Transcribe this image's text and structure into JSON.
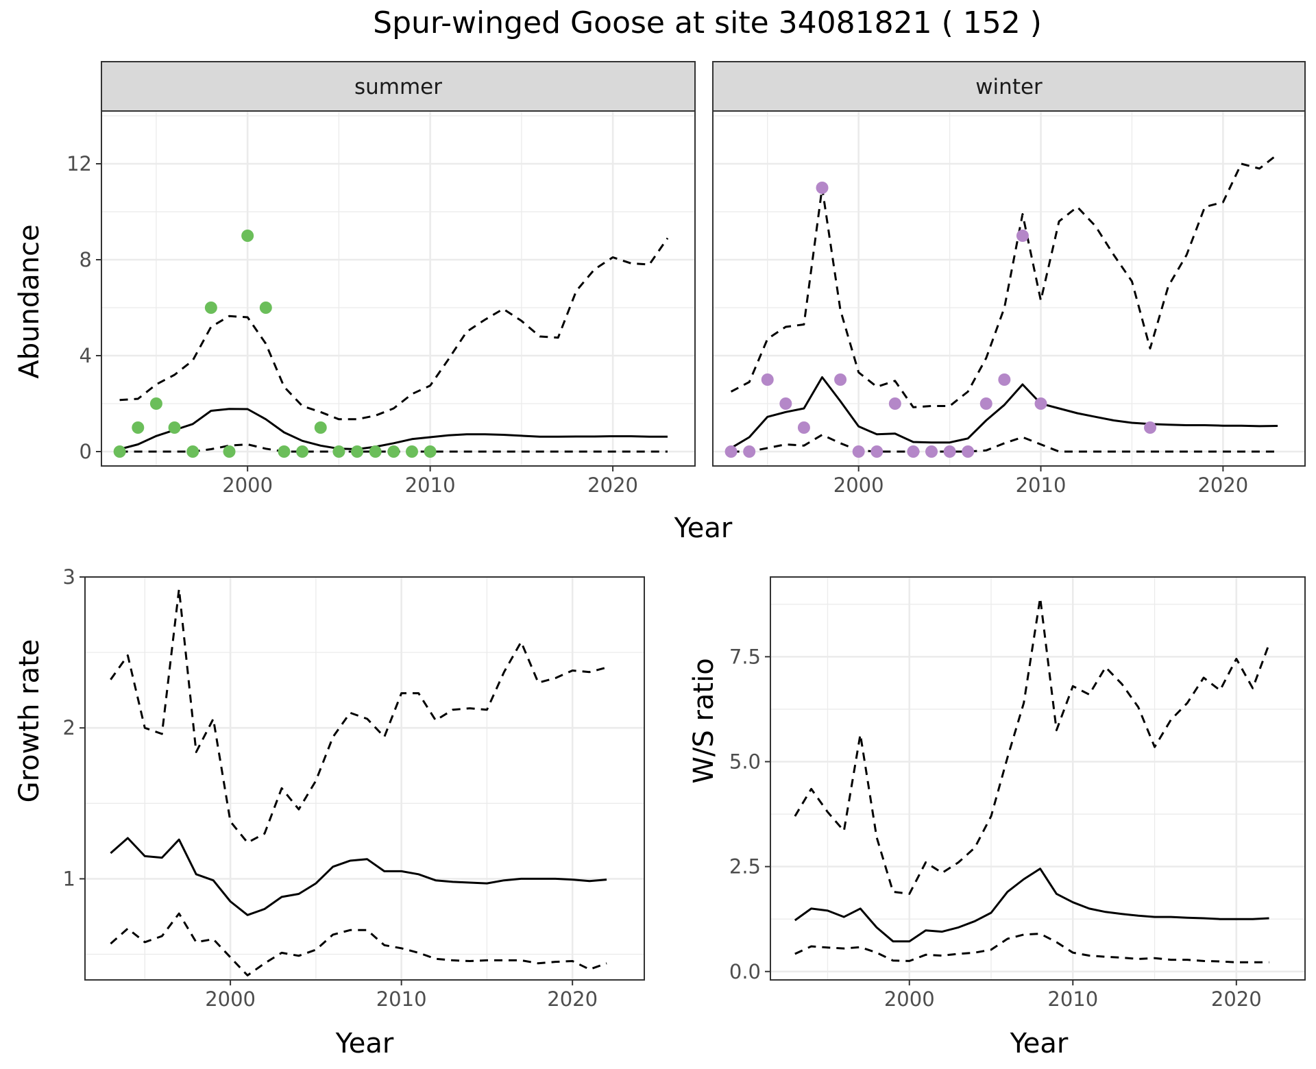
{
  "title": "Spur-winged Goose at site 34081821 ( 152 )",
  "colors": {
    "summer": "#6BBE5A",
    "winter": "#B487C8",
    "line": "#000000",
    "strip": "#D9D9D9",
    "grid": "#EBEBEB"
  },
  "chart_data": [
    {
      "type": "line",
      "panel": "summer",
      "strip_label": "summer",
      "xlabel": "Year",
      "ylabel": "Abundance",
      "xlim": [
        1992,
        2024.5
      ],
      "ylim": [
        -0.6,
        14.2
      ],
      "x_ticks": [
        2000,
        2010,
        2020
      ],
      "y_ticks": [
        0,
        4,
        8,
        12
      ],
      "mean": {
        "x": [
          1993,
          1994,
          1995,
          1996,
          1997,
          1998,
          1999,
          2000,
          2001,
          2002,
          2003,
          2004,
          2005,
          2006,
          2007,
          2008,
          2009,
          2010,
          2011,
          2012,
          2013,
          2014,
          2015,
          2016,
          2017,
          2018,
          2019,
          2020,
          2021,
          2022,
          2023
        ],
        "y": [
          0.1,
          0.3,
          0.65,
          0.9,
          1.15,
          1.7,
          1.78,
          1.77,
          1.35,
          0.8,
          0.45,
          0.25,
          0.12,
          0.1,
          0.2,
          0.35,
          0.52,
          0.6,
          0.68,
          0.72,
          0.72,
          0.7,
          0.66,
          0.62,
          0.62,
          0.63,
          0.63,
          0.64,
          0.64,
          0.62,
          0.62
        ]
      },
      "upper": {
        "x": [
          1993,
          1994,
          1995,
          1996,
          1997,
          1998,
          1999,
          2000,
          2001,
          2002,
          2003,
          2004,
          2005,
          2006,
          2007,
          2008,
          2009,
          2010,
          2011,
          2012,
          2013,
          2014,
          2015,
          2016,
          2017,
          2018,
          2019,
          2020,
          2021,
          2022,
          2023
        ],
        "y": [
          2.15,
          2.2,
          2.8,
          3.2,
          3.8,
          5.2,
          5.65,
          5.6,
          4.5,
          2.7,
          1.9,
          1.65,
          1.35,
          1.35,
          1.5,
          1.8,
          2.4,
          2.75,
          3.85,
          5.0,
          5.5,
          5.95,
          5.45,
          4.8,
          4.75,
          6.7,
          7.6,
          8.1,
          7.85,
          7.8,
          8.9
        ]
      },
      "lower": {
        "x": [
          1993,
          1994,
          1995,
          1996,
          1997,
          1998,
          1999,
          2000,
          2001,
          2002,
          2003,
          2004,
          2005,
          2006,
          2007,
          2008,
          2009,
          2010,
          2011,
          2012,
          2013,
          2014,
          2015,
          2016,
          2017,
          2018,
          2019,
          2020,
          2021,
          2022,
          2023
        ],
        "y": [
          0,
          0,
          0,
          0,
          0,
          0.1,
          0.25,
          0.3,
          0.12,
          0,
          0,
          0,
          0,
          0,
          0,
          0,
          0,
          0,
          0,
          0,
          0,
          0,
          0,
          0,
          0,
          0,
          0,
          0,
          0,
          0,
          0
        ]
      },
      "points": {
        "x": [
          1993,
          1994,
          1995,
          1996,
          1997,
          1998,
          1999,
          2000,
          2001,
          2002,
          2003,
          2004,
          2005,
          2006,
          2007,
          2008,
          2009,
          2010
        ],
        "y": [
          0,
          1,
          2,
          1,
          0,
          6,
          0,
          9,
          6,
          0,
          0,
          1,
          0,
          0,
          0,
          0,
          0,
          0
        ]
      }
    },
    {
      "type": "line",
      "panel": "winter",
      "strip_label": "winter",
      "xlabel": "Year",
      "ylabel": "Abundance",
      "xlim": [
        1992,
        2024.5
      ],
      "ylim": [
        -0.6,
        14.2
      ],
      "x_ticks": [
        2000,
        2010,
        2020
      ],
      "y_ticks": [
        0,
        4,
        8,
        12
      ],
      "mean": {
        "x": [
          1993,
          1994,
          1995,
          1996,
          1997,
          1998,
          1999,
          2000,
          2001,
          2002,
          2003,
          2004,
          2005,
          2006,
          2007,
          2008,
          2009,
          2010,
          2011,
          2012,
          2013,
          2014,
          2015,
          2016,
          2017,
          2018,
          2019,
          2020,
          2021,
          2022,
          2023
        ],
        "y": [
          0.15,
          0.6,
          1.45,
          1.65,
          1.8,
          3.1,
          2.1,
          1.05,
          0.72,
          0.75,
          0.4,
          0.38,
          0.38,
          0.55,
          1.3,
          1.95,
          2.8,
          2.0,
          1.8,
          1.6,
          1.45,
          1.3,
          1.2,
          1.15,
          1.12,
          1.1,
          1.1,
          1.08,
          1.08,
          1.06,
          1.07
        ]
      },
      "upper": {
        "x": [
          1993,
          1994,
          1995,
          1996,
          1997,
          1998,
          1999,
          2000,
          2001,
          2002,
          2003,
          2004,
          2005,
          2006,
          2007,
          2008,
          2009,
          2010,
          2011,
          2012,
          2013,
          2014,
          2015,
          2016,
          2017,
          2018,
          2019,
          2020,
          2021,
          2022,
          2023
        ],
        "y": [
          2.5,
          2.9,
          4.7,
          5.2,
          5.3,
          11.0,
          5.9,
          3.3,
          2.7,
          2.95,
          1.85,
          1.9,
          1.9,
          2.5,
          3.9,
          6.0,
          9.9,
          6.3,
          9.6,
          10.2,
          9.4,
          8.2,
          7.1,
          4.3,
          6.9,
          8.2,
          10.2,
          10.4,
          12.0,
          11.8,
          12.4
        ]
      },
      "lower": {
        "x": [
          1993,
          1994,
          1995,
          1996,
          1997,
          1998,
          1999,
          2000,
          2001,
          2002,
          2003,
          2004,
          2005,
          2006,
          2007,
          2008,
          2009,
          2010,
          2011,
          2012,
          2013,
          2014,
          2015,
          2016,
          2017,
          2018,
          2019,
          2020,
          2021,
          2022,
          2023
        ],
        "y": [
          0,
          0,
          0.15,
          0.3,
          0.25,
          0.7,
          0.35,
          0.05,
          0,
          0,
          0,
          0,
          0,
          0,
          0.05,
          0.35,
          0.6,
          0.3,
          0,
          0,
          0,
          0,
          0,
          0,
          0,
          0,
          0,
          0,
          0,
          0,
          0
        ]
      },
      "points": {
        "x": [
          1993,
          1994,
          1995,
          1996,
          1997,
          1998,
          1999,
          2000,
          2001,
          2002,
          2003,
          2004,
          2005,
          2006,
          2007,
          2008,
          2009,
          2010,
          2016
        ],
        "y": [
          0,
          0,
          3,
          2,
          1,
          11,
          3,
          0,
          0,
          2,
          0,
          0,
          0,
          0,
          2,
          3,
          9,
          2,
          1
        ]
      }
    },
    {
      "type": "line",
      "panel": "growth",
      "xlabel": "Year",
      "ylabel": "Growth rate",
      "xlim": [
        1991.5,
        2024.2
      ],
      "ylim": [
        0.33,
        3.0
      ],
      "x_ticks": [
        2000,
        2010,
        2020
      ],
      "y_ticks": [
        1,
        2,
        3
      ],
      "mean": {
        "x": [
          1993,
          1994,
          1995,
          1996,
          1997,
          1998,
          1999,
          2000,
          2001,
          2002,
          2003,
          2004,
          2005,
          2006,
          2007,
          2008,
          2009,
          2010,
          2011,
          2012,
          2013,
          2014,
          2015,
          2016,
          2017,
          2018,
          2019,
          2020,
          2021,
          2022
        ],
        "y": [
          1.17,
          1.27,
          1.15,
          1.14,
          1.26,
          1.03,
          0.99,
          0.85,
          0.76,
          0.8,
          0.88,
          0.9,
          0.97,
          1.08,
          1.12,
          1.13,
          1.05,
          1.05,
          1.03,
          0.99,
          0.98,
          0.975,
          0.97,
          0.99,
          1.0,
          1.0,
          1.0,
          0.995,
          0.985,
          0.995
        ]
      },
      "upper": {
        "x": [
          1993,
          1994,
          1995,
          1996,
          1997,
          1998,
          1999,
          2000,
          2001,
          2002,
          2003,
          2004,
          2005,
          2006,
          2007,
          2008,
          2009,
          2010,
          2011,
          2012,
          2013,
          2014,
          2015,
          2016,
          2017,
          2018,
          2019,
          2020,
          2021,
          2022
        ],
        "y": [
          2.32,
          2.48,
          2.0,
          1.96,
          2.92,
          1.84,
          2.06,
          1.38,
          1.24,
          1.3,
          1.6,
          1.46,
          1.65,
          1.94,
          2.1,
          2.06,
          1.94,
          2.23,
          2.23,
          2.05,
          2.12,
          2.13,
          2.12,
          2.37,
          2.57,
          2.3,
          2.33,
          2.38,
          2.37,
          2.4
        ]
      },
      "lower": {
        "x": [
          1993,
          1994,
          1995,
          1996,
          1997,
          1998,
          1999,
          2000,
          2001,
          2002,
          2003,
          2004,
          2005,
          2006,
          2007,
          2008,
          2009,
          2010,
          2011,
          2012,
          2013,
          2014,
          2015,
          2016,
          2017,
          2018,
          2019,
          2020,
          2021,
          2022
        ],
        "y": [
          0.57,
          0.67,
          0.58,
          0.62,
          0.77,
          0.58,
          0.6,
          0.48,
          0.36,
          0.44,
          0.51,
          0.49,
          0.53,
          0.63,
          0.66,
          0.66,
          0.56,
          0.54,
          0.51,
          0.47,
          0.46,
          0.455,
          0.46,
          0.46,
          0.46,
          0.44,
          0.45,
          0.455,
          0.4,
          0.44
        ]
      }
    },
    {
      "type": "line",
      "panel": "ws_ratio",
      "xlabel": "Year",
      "ylabel": "W/S ratio",
      "xlim": [
        1991.5,
        2024.2
      ],
      "ylim": [
        -0.2,
        9.4
      ],
      "x_ticks": [
        2000,
        2010,
        2020
      ],
      "y_ticks": [
        0.0,
        2.5,
        5.0,
        7.5
      ],
      "y_tick_labels": [
        "0.0",
        "2.5",
        "5.0",
        "7.5"
      ],
      "mean": {
        "x": [
          1993,
          1994,
          1995,
          1996,
          1997,
          1998,
          1999,
          2000,
          2001,
          2002,
          2003,
          2004,
          2005,
          2006,
          2007,
          2008,
          2009,
          2010,
          2011,
          2012,
          2013,
          2014,
          2015,
          2016,
          2017,
          2018,
          2019,
          2020,
          2021,
          2022
        ],
        "y": [
          1.22,
          1.5,
          1.45,
          1.3,
          1.5,
          1.05,
          0.72,
          0.72,
          0.98,
          0.95,
          1.05,
          1.2,
          1.4,
          1.9,
          2.2,
          2.45,
          1.85,
          1.65,
          1.5,
          1.42,
          1.37,
          1.33,
          1.3,
          1.3,
          1.28,
          1.27,
          1.25,
          1.25,
          1.25,
          1.27
        ]
      },
      "upper": {
        "x": [
          1993,
          1994,
          1995,
          1996,
          1997,
          1998,
          1999,
          2000,
          2001,
          2002,
          2003,
          2004,
          2005,
          2006,
          2007,
          2008,
          2009,
          2010,
          2011,
          2012,
          2013,
          2014,
          2015,
          2016,
          2017,
          2018,
          2019,
          2020,
          2021,
          2022
        ],
        "y": [
          3.7,
          4.35,
          3.8,
          3.35,
          5.65,
          3.2,
          1.9,
          1.85,
          2.6,
          2.35,
          2.6,
          2.95,
          3.7,
          5.1,
          6.4,
          8.9,
          5.75,
          6.8,
          6.6,
          7.25,
          6.85,
          6.3,
          5.35,
          6.0,
          6.4,
          7.0,
          6.7,
          7.45,
          6.75,
          7.8
        ]
      },
      "lower": {
        "x": [
          1993,
          1994,
          1995,
          1996,
          1997,
          1998,
          1999,
          2000,
          2001,
          2002,
          2003,
          2004,
          2005,
          2006,
          2007,
          2008,
          2009,
          2010,
          2011,
          2012,
          2013,
          2014,
          2015,
          2016,
          2017,
          2018,
          2019,
          2020,
          2021,
          2022
        ],
        "y": [
          0.42,
          0.6,
          0.57,
          0.55,
          0.58,
          0.45,
          0.26,
          0.25,
          0.4,
          0.38,
          0.42,
          0.45,
          0.52,
          0.78,
          0.88,
          0.9,
          0.7,
          0.45,
          0.38,
          0.35,
          0.33,
          0.3,
          0.32,
          0.28,
          0.28,
          0.25,
          0.24,
          0.22,
          0.22,
          0.22
        ]
      }
    }
  ]
}
